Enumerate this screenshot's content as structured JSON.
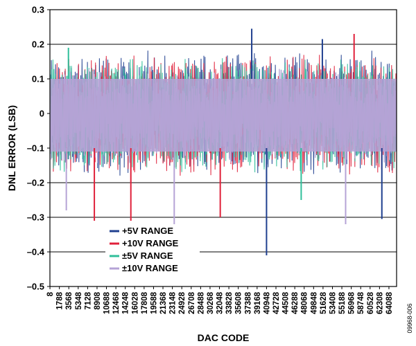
{
  "chart_data": {
    "type": "line",
    "title": "",
    "xlabel": "DAC CODE",
    "ylabel": "DNL ERROR (LSB)",
    "ylim": [
      -0.5,
      0.3
    ],
    "yticks": [
      -0.5,
      -0.4,
      -0.3,
      -0.2,
      -0.1,
      0,
      0.1,
      0.2,
      0.3
    ],
    "ytick_labels": [
      "–0.5",
      "–0.4",
      "–0.3",
      "–0.2",
      "–0.1",
      "0",
      "0.1",
      "0.2",
      "0.3"
    ],
    "xlim": [
      0,
      65535
    ],
    "xticks": [
      8,
      1788,
      3568,
      5348,
      7128,
      8908,
      10688,
      12468,
      14248,
      16028,
      17808,
      19588,
      21368,
      23148,
      24928,
      26708,
      28488,
      30268,
      32048,
      33828,
      35608,
      37388,
      39168,
      40948,
      42728,
      44508,
      46288,
      48068,
      49848,
      51628,
      53408,
      55188,
      56968,
      58748,
      60528,
      62308,
      64088
    ],
    "grid": "horizontal at y = -0.4, -0.3, -0.2, 0.2",
    "legend_position": "lower-left",
    "series": [
      {
        "name": "+5V RANGE",
        "color": "#1f3f8f",
        "envelope": {
          "upper_typical": 0.15,
          "lower_typical": -0.15,
          "max": 0.245,
          "min": -0.41
        }
      },
      {
        "name": "+10V RANGE",
        "color": "#e0203a",
        "envelope": {
          "upper_typical": 0.14,
          "lower_typical": -0.15,
          "max": 0.23,
          "min": -0.31
        }
      },
      {
        "name": "±5V RANGE",
        "color": "#2fbf9a",
        "envelope": {
          "upper_typical": 0.13,
          "lower_typical": -0.14,
          "max": 0.19,
          "min": -0.25
        }
      },
      {
        "name": "±10V RANGE",
        "color": "#b5a3d6",
        "envelope": {
          "upper_typical": 0.1,
          "lower_typical": -0.11,
          "max": 0.13,
          "min": -0.32
        }
      }
    ],
    "spikes": [
      {
        "series": 0,
        "x": 38150,
        "y": 0.245
      },
      {
        "series": 0,
        "x": 40948,
        "y": -0.41
      },
      {
        "series": 0,
        "x": 62750,
        "y": -0.305
      },
      {
        "series": 0,
        "x": 51500,
        "y": 0.215
      },
      {
        "series": 1,
        "x": 57500,
        "y": 0.23
      },
      {
        "series": 1,
        "x": 8400,
        "y": -0.31
      },
      {
        "series": 1,
        "x": 15300,
        "y": -0.31
      },
      {
        "series": 1,
        "x": 32200,
        "y": -0.3
      },
      {
        "series": 2,
        "x": 3500,
        "y": 0.19
      },
      {
        "series": 2,
        "x": 47500,
        "y": -0.25
      },
      {
        "series": 3,
        "x": 23500,
        "y": -0.32
      },
      {
        "series": 3,
        "x": 55900,
        "y": -0.32
      },
      {
        "series": 3,
        "x": 3100,
        "y": -0.28
      }
    ],
    "figure_id": "09968-006"
  }
}
